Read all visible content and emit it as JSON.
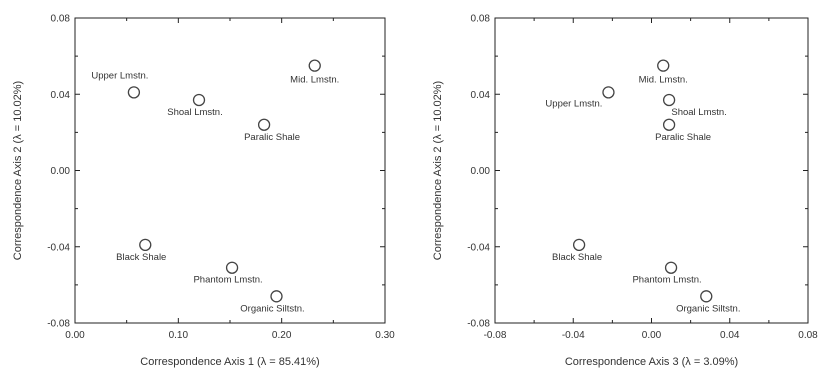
{
  "chart_data": [
    {
      "type": "scatter",
      "title": "",
      "xlabel": "Correspondence Axis 1 (λ = 85.41%)",
      "ylabel": "Correspondence Axis 2 (λ = 10.02%)",
      "xlim": [
        0.0,
        0.3
      ],
      "ylim": [
        -0.08,
        0.08
      ],
      "xticks": [
        "0.00",
        "0.10",
        "0.20",
        "0.30"
      ],
      "yticks": [
        "-0.08",
        "-0.04",
        "0.00",
        "0.04",
        "0.08"
      ],
      "grid": false,
      "points": [
        {
          "label": "Mid. Lmstn.",
          "x": 0.232,
          "y": 0.055
        },
        {
          "label": "Upper Lmstn.",
          "x": 0.057,
          "y": 0.041
        },
        {
          "label": "Shoal Lmstn.",
          "x": 0.12,
          "y": 0.037
        },
        {
          "label": "Paralic Shale",
          "x": 0.183,
          "y": 0.024
        },
        {
          "label": "Black Shale",
          "x": 0.068,
          "y": -0.039
        },
        {
          "label": "Phantom Lmstn.",
          "x": 0.152,
          "y": -0.051
        },
        {
          "label": "Organic Siltstn.",
          "x": 0.195,
          "y": -0.066
        }
      ]
    },
    {
      "type": "scatter",
      "title": "",
      "xlabel": "Correspondence Axis 3 (λ = 3.09%)",
      "ylabel": "Correspondence Axis 2 (λ = 10.02%)",
      "xlim": [
        -0.08,
        0.08
      ],
      "ylim": [
        -0.08,
        0.08
      ],
      "xticks": [
        "-0.08",
        "-0.04",
        "0.00",
        "0.04",
        "0.08"
      ],
      "yticks": [
        "-0.08",
        "-0.04",
        "0.00",
        "0.04",
        "0.08"
      ],
      "grid": false,
      "points": [
        {
          "label": "Mid. Lmstn.",
          "x": 0.006,
          "y": 0.055
        },
        {
          "label": "Upper Lmstn.",
          "x": -0.022,
          "y": 0.041
        },
        {
          "label": "Shoal Lmstn.",
          "x": 0.009,
          "y": 0.037
        },
        {
          "label": "Paralic Shale",
          "x": 0.009,
          "y": 0.024
        },
        {
          "label": "Black Shale",
          "x": -0.037,
          "y": -0.039
        },
        {
          "label": "Phantom Lmstn.",
          "x": 0.01,
          "y": -0.051
        },
        {
          "label": "Organic Siltstn.",
          "x": 0.028,
          "y": -0.066
        }
      ]
    }
  ]
}
